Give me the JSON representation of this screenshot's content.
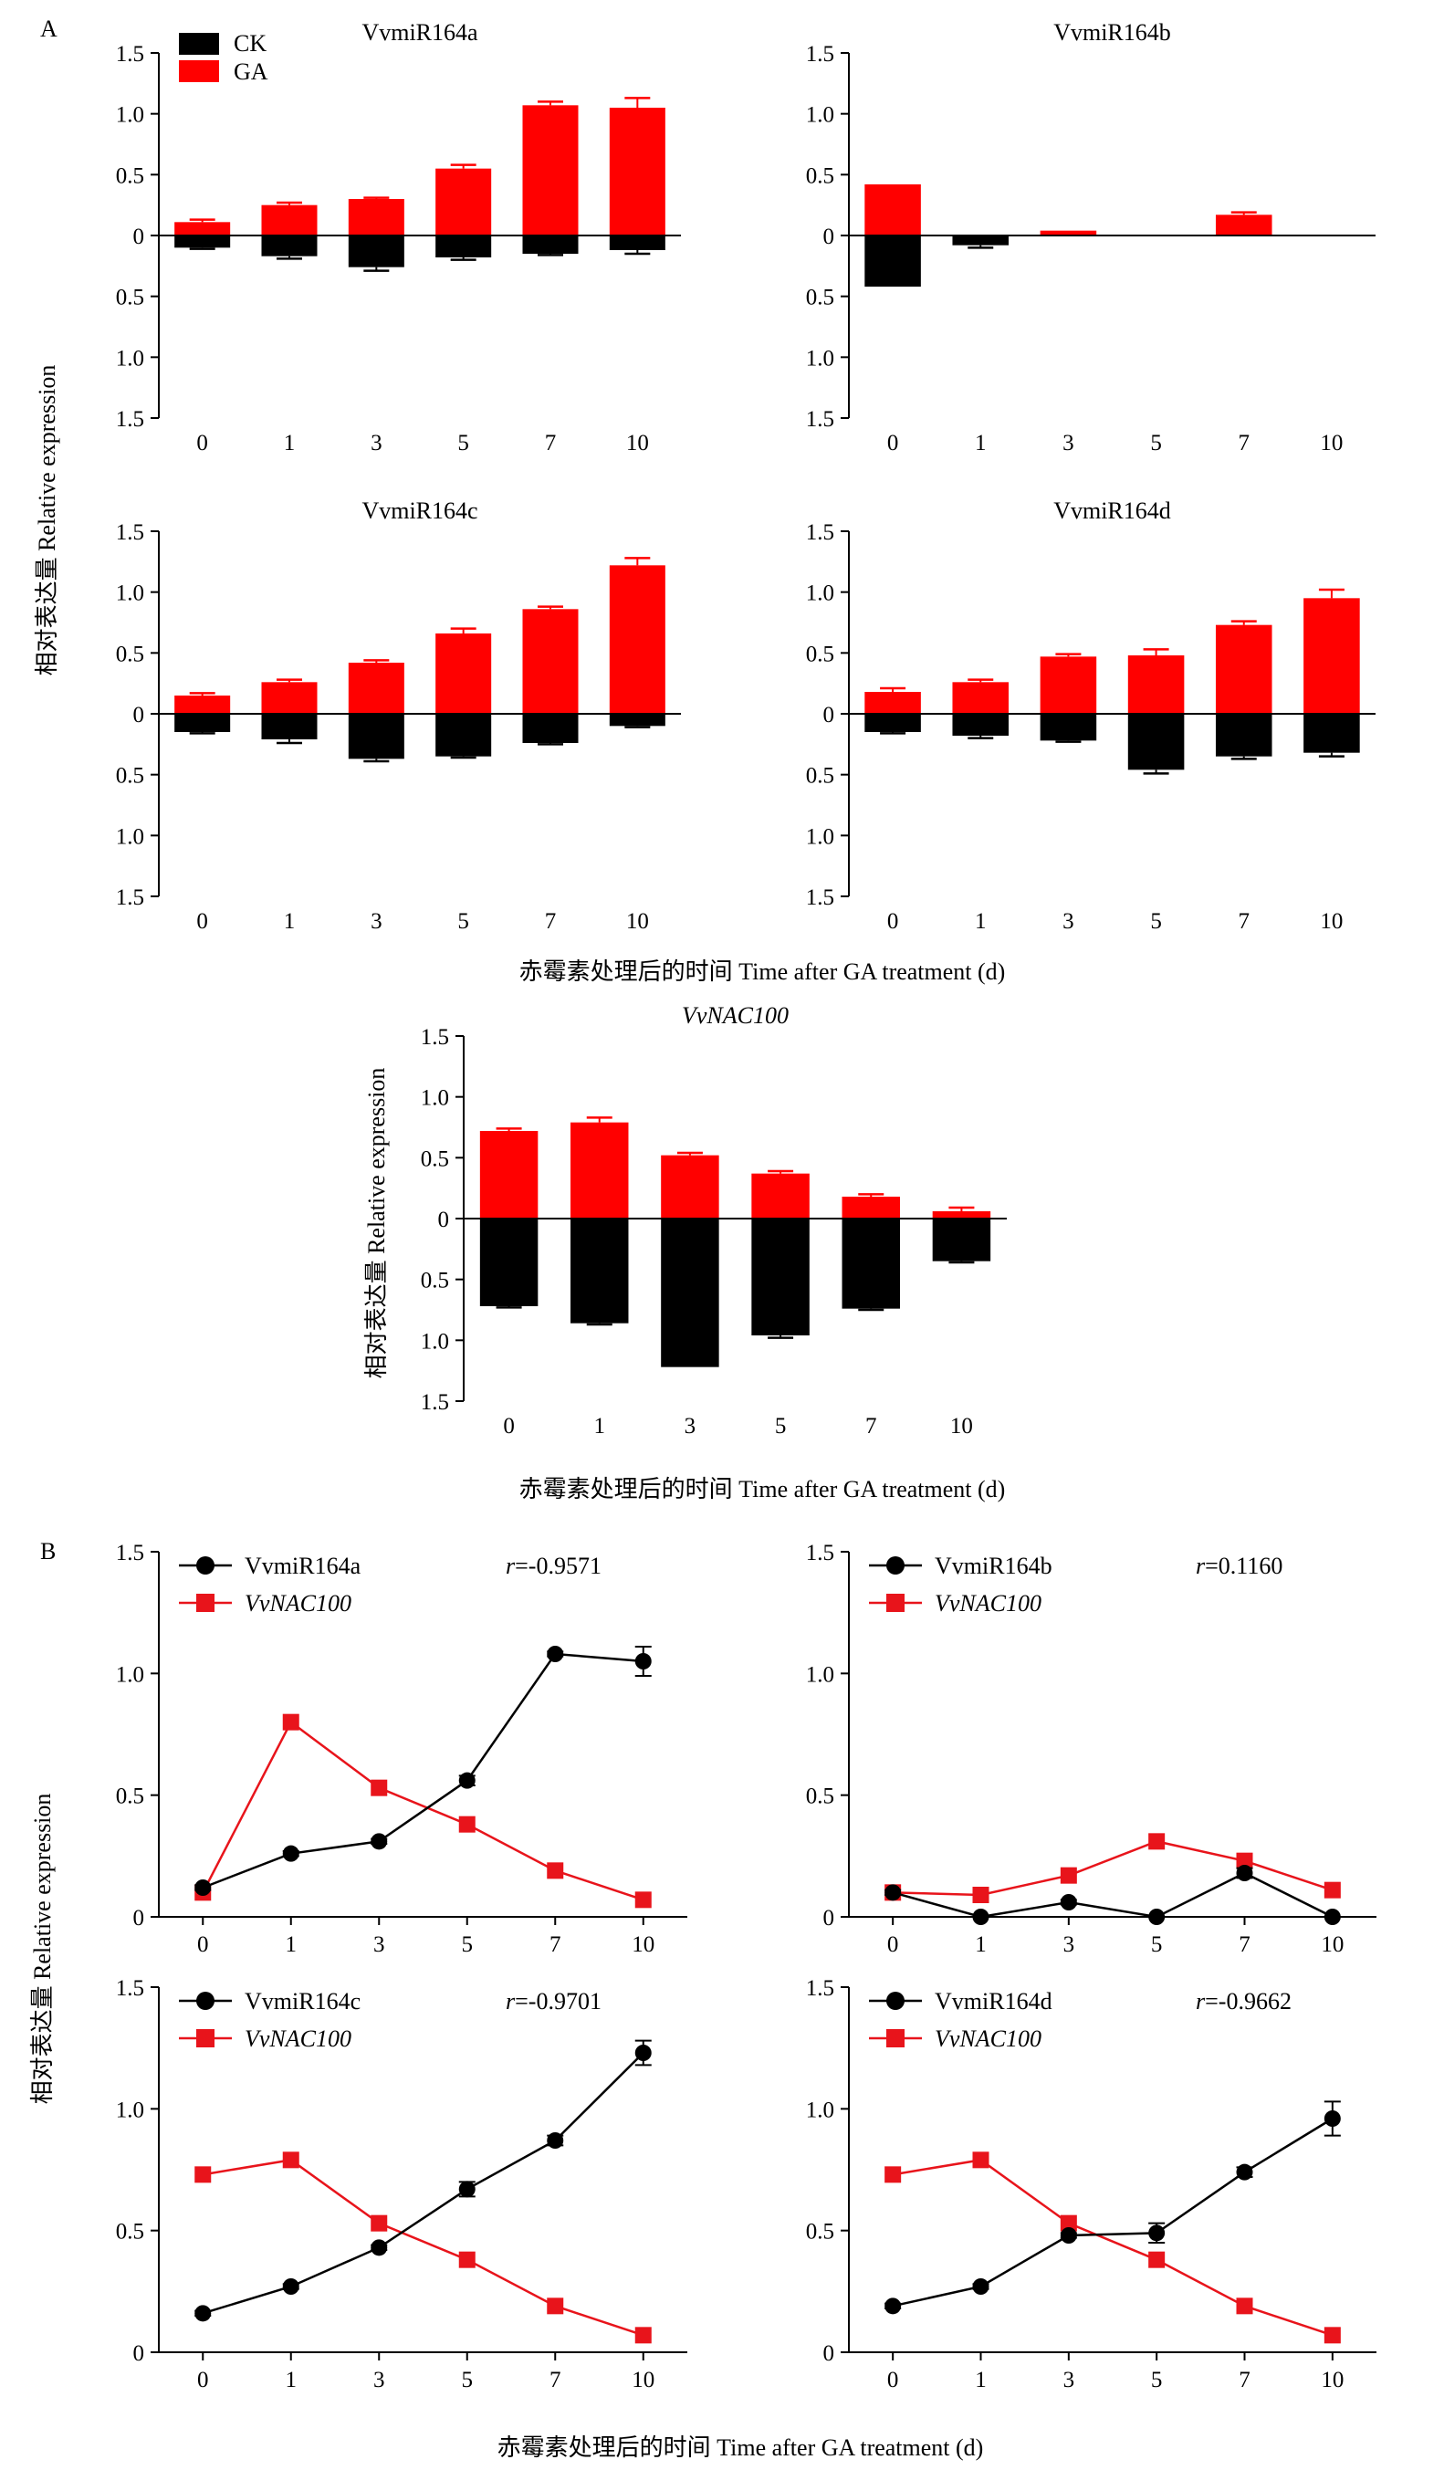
{
  "figure": {
    "panel_a_label": "A",
    "panel_b_label": "B",
    "ylabel": "相对表达量 Relative expression",
    "xlabel": "赤霉素处理后的时间 Time after GA treatment (d)",
    "xlabel_nac": "赤霉素处理后的时间  Time after GA treatment (d)",
    "colors": {
      "ck": "#000000",
      "ga": "#ff0000",
      "mirna": "#000000",
      "nac": "#e8141b"
    }
  },
  "chart_data": [
    {
      "id": "a1",
      "type": "bar",
      "title": "VvmiR164a",
      "title_italic": false,
      "categories": [
        "0",
        "1",
        "3",
        "5",
        "7",
        "10"
      ],
      "ylim": [
        -1.5,
        1.5
      ],
      "y_tick_labels": [
        "1.5",
        "1.0",
        "0.5",
        "0",
        "0.5",
        "1.0",
        "1.5"
      ],
      "legend": {
        "position": "top-left",
        "entries": [
          "CK",
          "GA"
        ]
      },
      "series": [
        {
          "name": "GA",
          "values": [
            0.11,
            0.25,
            0.3,
            0.55,
            1.07,
            1.05
          ],
          "errors": [
            0.02,
            0.02,
            0.01,
            0.03,
            0.03,
            0.08
          ]
        },
        {
          "name": "CK",
          "values": [
            -0.1,
            -0.17,
            -0.26,
            -0.18,
            -0.15,
            -0.12
          ],
          "errors": [
            0.01,
            0.02,
            0.03,
            0.02,
            0.01,
            0.03
          ]
        }
      ]
    },
    {
      "id": "a2",
      "type": "bar",
      "title": "VvmiR164b",
      "title_italic": false,
      "categories": [
        "0",
        "1",
        "3",
        "5",
        "7",
        "10"
      ],
      "ylim": [
        -1.5,
        1.5
      ],
      "y_tick_labels": [
        "1.5",
        "1.0",
        "0.5",
        "0",
        "0.5",
        "1.0",
        "1.5"
      ],
      "series": [
        {
          "name": "GA",
          "values": [
            0.42,
            0.0,
            0.04,
            0.0,
            0.17,
            0.0
          ],
          "errors": [
            0.0,
            0.0,
            0.0,
            0.0,
            0.02,
            0.0
          ]
        },
        {
          "name": "CK",
          "values": [
            -0.42,
            -0.08,
            0.0,
            0.0,
            0.0,
            0.0
          ],
          "errors": [
            0.0,
            0.02,
            0.0,
            0.0,
            0.0,
            0.0
          ]
        }
      ]
    },
    {
      "id": "a3",
      "type": "bar",
      "title": "VvmiR164c",
      "title_italic": false,
      "categories": [
        "0",
        "1",
        "3",
        "5",
        "7",
        "10"
      ],
      "ylim": [
        -1.5,
        1.5
      ],
      "y_tick_labels": [
        "1.5",
        "1.0",
        "0.5",
        "0",
        "0.5",
        "1.0",
        "1.5"
      ],
      "series": [
        {
          "name": "GA",
          "values": [
            0.15,
            0.26,
            0.42,
            0.66,
            0.86,
            1.22
          ],
          "errors": [
            0.02,
            0.02,
            0.02,
            0.04,
            0.02,
            0.06
          ]
        },
        {
          "name": "CK",
          "values": [
            -0.15,
            -0.21,
            -0.37,
            -0.35,
            -0.24,
            -0.1
          ],
          "errors": [
            0.01,
            0.03,
            0.02,
            0.01,
            0.01,
            0.01
          ]
        }
      ]
    },
    {
      "id": "a4",
      "type": "bar",
      "title": "VvmiR164d",
      "title_italic": false,
      "categories": [
        "0",
        "1",
        "3",
        "5",
        "7",
        "10"
      ],
      "ylim": [
        -1.5,
        1.5
      ],
      "y_tick_labels": [
        "1.5",
        "1.0",
        "0.5",
        "0",
        "0.5",
        "1.0",
        "1.5"
      ],
      "series": [
        {
          "name": "GA",
          "values": [
            0.18,
            0.26,
            0.47,
            0.48,
            0.73,
            0.95
          ],
          "errors": [
            0.03,
            0.02,
            0.02,
            0.05,
            0.03,
            0.07
          ]
        },
        {
          "name": "CK",
          "values": [
            -0.15,
            -0.18,
            -0.22,
            -0.46,
            -0.35,
            -0.32
          ],
          "errors": [
            0.01,
            0.02,
            0.01,
            0.03,
            0.02,
            0.03
          ]
        }
      ]
    },
    {
      "id": "a5",
      "type": "bar",
      "title": "VvNAC100",
      "title_italic": true,
      "categories": [
        "0",
        "1",
        "3",
        "5",
        "7",
        "10"
      ],
      "ylim": [
        -1.5,
        1.5
      ],
      "y_tick_labels": [
        "1.5",
        "1.0",
        "0.5",
        "0",
        "0.5",
        "1.0",
        "1.5"
      ],
      "series": [
        {
          "name": "GA",
          "values": [
            0.72,
            0.79,
            0.52,
            0.37,
            0.18,
            0.06
          ],
          "errors": [
            0.02,
            0.04,
            0.02,
            0.02,
            0.02,
            0.03
          ]
        },
        {
          "name": "CK",
          "values": [
            -0.72,
            -0.86,
            -1.22,
            -0.96,
            -0.74,
            -0.35
          ],
          "errors": [
            0.01,
            0.01,
            0.0,
            0.02,
            0.01,
            0.01
          ]
        }
      ]
    },
    {
      "id": "b1",
      "type": "line",
      "categories": [
        "0",
        "1",
        "3",
        "5",
        "7",
        "10"
      ],
      "ylim": [
        0,
        1.5
      ],
      "y_tick_labels": [
        "0",
        "0.5",
        "1.0",
        "1.5"
      ],
      "annotation": {
        "r_letter": "r",
        "r_value": "=-0.9571"
      },
      "series": [
        {
          "name": "VvmiR164a",
          "italic": false,
          "marker": "circle",
          "values": [
            0.12,
            0.26,
            0.31,
            0.56,
            1.08,
            1.05
          ],
          "errors": [
            0.01,
            0.01,
            0.01,
            0.02,
            0.01,
            0.06
          ]
        },
        {
          "name": "VvNAC100",
          "italic": true,
          "marker": "square",
          "values": [
            0.1,
            0.8,
            0.53,
            0.38,
            0.19,
            0.07
          ],
          "errors": [
            0,
            0,
            0,
            0,
            0,
            0
          ]
        }
      ]
    },
    {
      "id": "b2",
      "type": "line",
      "categories": [
        "0",
        "1",
        "3",
        "5",
        "7",
        "10"
      ],
      "ylim": [
        0,
        1.5
      ],
      "y_tick_labels": [
        "0",
        "0.5",
        "1.0",
        "1.5"
      ],
      "annotation": {
        "r_letter": "r",
        "r_value": "=0.1160"
      },
      "series": [
        {
          "name": "VvmiR164b",
          "italic": false,
          "marker": "circle",
          "values": [
            0.1,
            0.0,
            0.06,
            0.0,
            0.18,
            0.0
          ],
          "errors": [
            0.01,
            0,
            0.01,
            0,
            0.02,
            0
          ]
        },
        {
          "name": "VvNAC100",
          "italic": true,
          "marker": "square",
          "values": [
            0.1,
            0.09,
            0.17,
            0.31,
            0.23,
            0.11
          ],
          "errors": [
            0,
            0,
            0,
            0,
            0,
            0
          ]
        }
      ]
    },
    {
      "id": "b3",
      "type": "line",
      "categories": [
        "0",
        "1",
        "3",
        "5",
        "7",
        "10"
      ],
      "ylim": [
        0,
        1.5
      ],
      "y_tick_labels": [
        "0",
        "0.5",
        "1.0",
        "1.5"
      ],
      "annotation": {
        "r_letter": "r",
        "r_value": "=-0.9701"
      },
      "series": [
        {
          "name": "VvmiR164c",
          "italic": false,
          "marker": "circle",
          "values": [
            0.16,
            0.27,
            0.43,
            0.67,
            0.87,
            1.23
          ],
          "errors": [
            0.01,
            0.01,
            0.01,
            0.03,
            0.02,
            0.05
          ]
        },
        {
          "name": "VvNAC100",
          "italic": true,
          "marker": "square",
          "values": [
            0.73,
            0.79,
            0.53,
            0.38,
            0.19,
            0.07
          ],
          "errors": [
            0,
            0,
            0,
            0,
            0,
            0
          ]
        }
      ]
    },
    {
      "id": "b4",
      "type": "line",
      "categories": [
        "0",
        "1",
        "3",
        "5",
        "7",
        "10"
      ],
      "ylim": [
        0,
        1.5
      ],
      "y_tick_labels": [
        "0",
        "0.5",
        "1.0",
        "1.5"
      ],
      "annotation": {
        "r_letter": "r",
        "r_value": "=-0.9662"
      },
      "series": [
        {
          "name": "VvmiR164d",
          "italic": false,
          "marker": "circle",
          "values": [
            0.19,
            0.27,
            0.48,
            0.49,
            0.74,
            0.96
          ],
          "errors": [
            0.01,
            0.01,
            0.01,
            0.04,
            0.02,
            0.07
          ]
        },
        {
          "name": "VvNAC100",
          "italic": true,
          "marker": "square",
          "values": [
            0.73,
            0.79,
            0.53,
            0.38,
            0.19,
            0.07
          ],
          "errors": [
            0,
            0,
            0,
            0,
            0,
            0
          ]
        }
      ]
    }
  ]
}
